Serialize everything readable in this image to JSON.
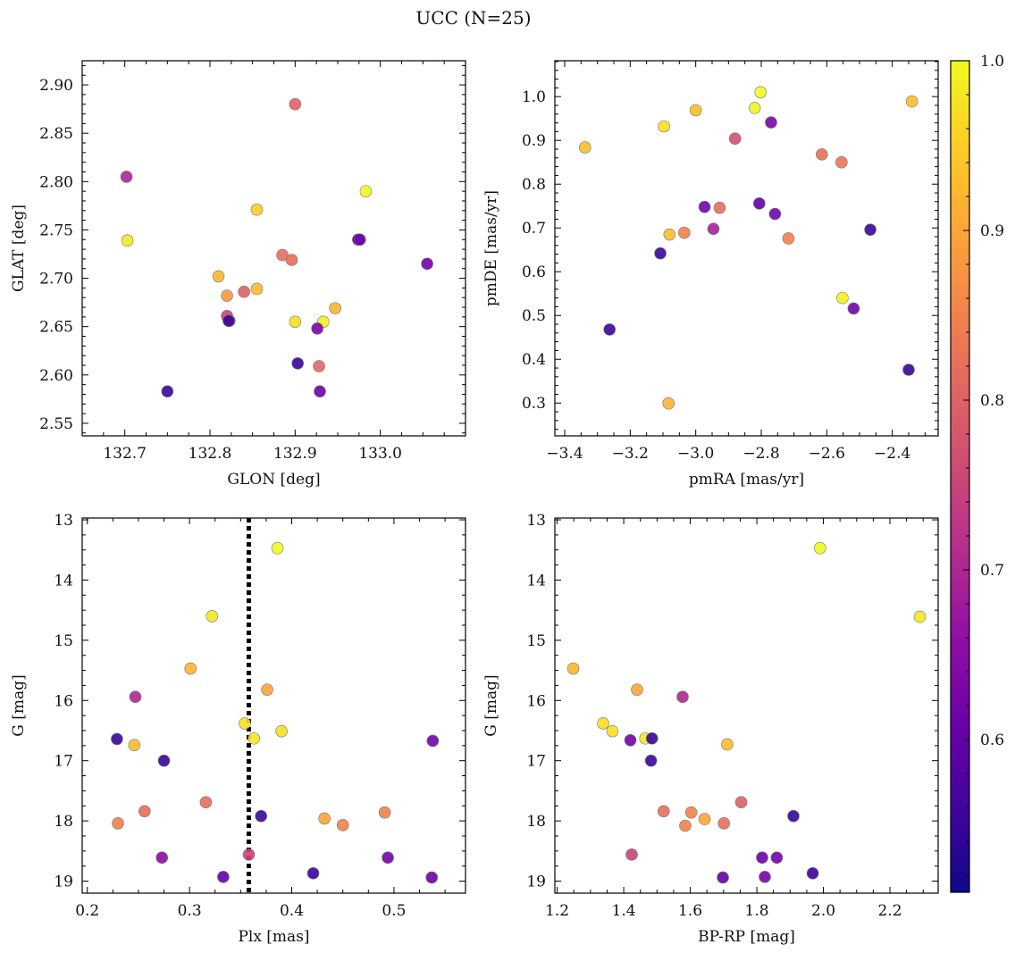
{
  "figure": {
    "title": "UCC (N=25)"
  },
  "colorbar": {
    "range": [
      0.51,
      1.0
    ],
    "tick_values": [
      0.6,
      0.7,
      0.8,
      0.9,
      1.0
    ],
    "tick_labels": [
      "0.6",
      "0.7",
      "0.8",
      "0.9",
      "1.0"
    ],
    "colormap": "plasma"
  },
  "chart_data": [
    {
      "type": "scatter",
      "name": "glon-glat",
      "xlabel": "GLON [deg]",
      "ylabel": "GLAT [deg]",
      "xlim": [
        132.65,
        133.1
      ],
      "ylim": [
        2.537,
        2.925
      ],
      "invert_y": false,
      "vline": null,
      "xticks": [
        132.7,
        132.8,
        132.9,
        133.0
      ],
      "xtick_labels": [
        "132.7",
        "132.8",
        "132.9",
        "133.0"
      ],
      "yticks": [
        2.55,
        2.6,
        2.65,
        2.7,
        2.75,
        2.8,
        2.85,
        2.9
      ],
      "ytick_labels": [
        "2.55",
        "2.60",
        "2.65",
        "2.70",
        "2.75",
        "2.80",
        "2.85",
        "2.90"
      ],
      "x": [
        132.9,
        132.983,
        132.702,
        132.703,
        132.855,
        132.933,
        132.885,
        132.926,
        132.896,
        132.81,
        132.823,
        132.84,
        132.855,
        132.9,
        132.82,
        132.75,
        132.947,
        132.974,
        132.976,
        133.055,
        132.822,
        132.82,
        132.903,
        132.928,
        132.929
      ],
      "y": [
        2.88,
        2.79,
        2.805,
        2.739,
        2.771,
        2.655,
        2.724,
        2.648,
        2.719,
        2.702,
        2.656,
        2.686,
        2.689,
        2.655,
        2.661,
        2.583,
        2.669,
        2.74,
        2.74,
        2.715,
        2.656,
        2.682,
        2.612,
        2.609,
        2.583
      ],
      "c": [
        0.8,
        1.0,
        0.7,
        0.98,
        0.95,
        0.99,
        0.82,
        0.63,
        0.82,
        0.92,
        0.77,
        0.8,
        0.93,
        0.97,
        0.75,
        0.55,
        0.92,
        0.55,
        0.62,
        0.62,
        0.55,
        0.88,
        0.55,
        0.81,
        0.61
      ]
    },
    {
      "type": "scatter",
      "name": "pmra-pmde",
      "xlabel": "pmRA [mas/yr]",
      "ylabel": "pmDE [mas/yr]",
      "xlim": [
        -3.43,
        -2.26
      ],
      "ylim": [
        0.225,
        1.082
      ],
      "invert_y": false,
      "vline": null,
      "xticks": [
        -3.4,
        -3.2,
        -3.0,
        -2.8,
        -2.6,
        -2.4
      ],
      "xtick_labels": [
        "−3.4",
        "−3.2",
        "−3.0",
        "−2.8",
        "−2.6",
        "−2.4"
      ],
      "yticks": [
        0.3,
        0.4,
        0.5,
        0.6,
        0.7,
        0.8,
        0.9,
        1.0
      ],
      "ytick_labels": [
        "0.3",
        "0.4",
        "0.5",
        "0.6",
        "0.7",
        "0.8",
        "0.9",
        "1.0"
      ],
      "x": [
        -3.338,
        -3.097,
        -3.0,
        -2.82,
        -2.802,
        -2.34,
        -2.77,
        -2.88,
        -2.615,
        -2.555,
        -2.973,
        -2.927,
        -2.806,
        -2.758,
        -2.946,
        -2.717,
        -3.08,
        -3.035,
        -2.467,
        -3.108,
        -2.552,
        -2.518,
        -3.263,
        -2.35,
        -3.083
      ],
      "y": [
        0.884,
        0.932,
        0.969,
        0.974,
        1.01,
        0.989,
        0.941,
        0.904,
        0.868,
        0.85,
        0.748,
        0.746,
        0.756,
        0.732,
        0.698,
        0.676,
        0.685,
        0.689,
        0.696,
        0.642,
        0.54,
        0.516,
        0.468,
        0.376,
        0.299
      ],
      "c": [
        0.93,
        0.97,
        0.93,
        0.99,
        1.0,
        0.93,
        0.63,
        0.77,
        0.82,
        0.83,
        0.62,
        0.82,
        0.6,
        0.62,
        0.69,
        0.85,
        0.93,
        0.85,
        0.55,
        0.55,
        0.99,
        0.62,
        0.55,
        0.55,
        0.92
      ]
    },
    {
      "type": "scatter",
      "name": "plx-g",
      "xlabel": "Plx [mas]",
      "ylabel": "G [mag]",
      "xlim": [
        0.195,
        0.57
      ],
      "ylim": [
        12.97,
        19.2
      ],
      "invert_y": true,
      "vline": 0.358,
      "xticks": [
        0.2,
        0.3,
        0.4,
        0.5
      ],
      "xtick_labels": [
        "0.2",
        "0.3",
        "0.4",
        "0.5"
      ],
      "yticks": [
        13,
        14,
        15,
        16,
        17,
        18,
        19
      ],
      "ytick_labels": [
        "13",
        "14",
        "15",
        "16",
        "17",
        "18",
        "19"
      ],
      "x": [
        0.386,
        0.322,
        0.301,
        0.376,
        0.247,
        0.354,
        0.39,
        0.229,
        0.363,
        0.246,
        0.538,
        0.275,
        0.316,
        0.256,
        0.23,
        0.37,
        0.432,
        0.491,
        0.45,
        0.273,
        0.358,
        0.494,
        0.333,
        0.421,
        0.537
      ],
      "y": [
        13.47,
        14.6,
        15.47,
        15.82,
        15.94,
        16.38,
        16.51,
        16.64,
        16.63,
        16.74,
        16.67,
        17.0,
        17.69,
        17.84,
        18.04,
        17.92,
        17.96,
        17.86,
        18.07,
        18.61,
        18.56,
        18.61,
        18.93,
        18.87,
        18.94
      ],
      "c": [
        1.0,
        0.98,
        0.92,
        0.9,
        0.7,
        0.97,
        0.97,
        0.55,
        0.98,
        0.93,
        0.62,
        0.55,
        0.82,
        0.82,
        0.85,
        0.55,
        0.9,
        0.85,
        0.85,
        0.65,
        0.75,
        0.62,
        0.6,
        0.55,
        0.61
      ]
    },
    {
      "type": "scatter",
      "name": "bprp-g",
      "xlabel": "BP-RP [mag]",
      "ylabel": "G [mag]",
      "xlim": [
        1.193,
        2.345
      ],
      "ylim": [
        12.97,
        19.2
      ],
      "invert_y": true,
      "vline": null,
      "xticks": [
        1.2,
        1.4,
        1.6,
        1.8,
        2.0,
        2.2
      ],
      "xtick_labels": [
        "1.2",
        "1.4",
        "1.6",
        "1.8",
        "2.0",
        "2.2"
      ],
      "yticks": [
        13,
        14,
        15,
        16,
        17,
        18,
        19
      ],
      "ytick_labels": [
        "13",
        "14",
        "15",
        "16",
        "17",
        "18",
        "19"
      ],
      "x": [
        1.99,
        2.29,
        1.248,
        1.44,
        1.577,
        1.338,
        1.366,
        1.42,
        1.465,
        1.485,
        1.711,
        1.482,
        1.753,
        1.52,
        1.603,
        1.643,
        1.585,
        1.701,
        1.91,
        1.424,
        1.816,
        1.86,
        1.698,
        1.824,
        1.968
      ],
      "y": [
        13.47,
        14.61,
        15.47,
        15.82,
        15.94,
        16.38,
        16.51,
        16.66,
        16.63,
        16.63,
        16.73,
        17.0,
        17.69,
        17.84,
        17.86,
        17.97,
        18.08,
        18.04,
        17.92,
        18.56,
        18.61,
        18.61,
        18.94,
        18.93,
        18.87
      ],
      "c": [
        1.0,
        0.98,
        0.92,
        0.9,
        0.7,
        0.97,
        0.97,
        0.62,
        0.98,
        0.55,
        0.93,
        0.55,
        0.8,
        0.82,
        0.85,
        0.9,
        0.85,
        0.82,
        0.55,
        0.75,
        0.61,
        0.62,
        0.6,
        0.62,
        0.55
      ]
    }
  ]
}
